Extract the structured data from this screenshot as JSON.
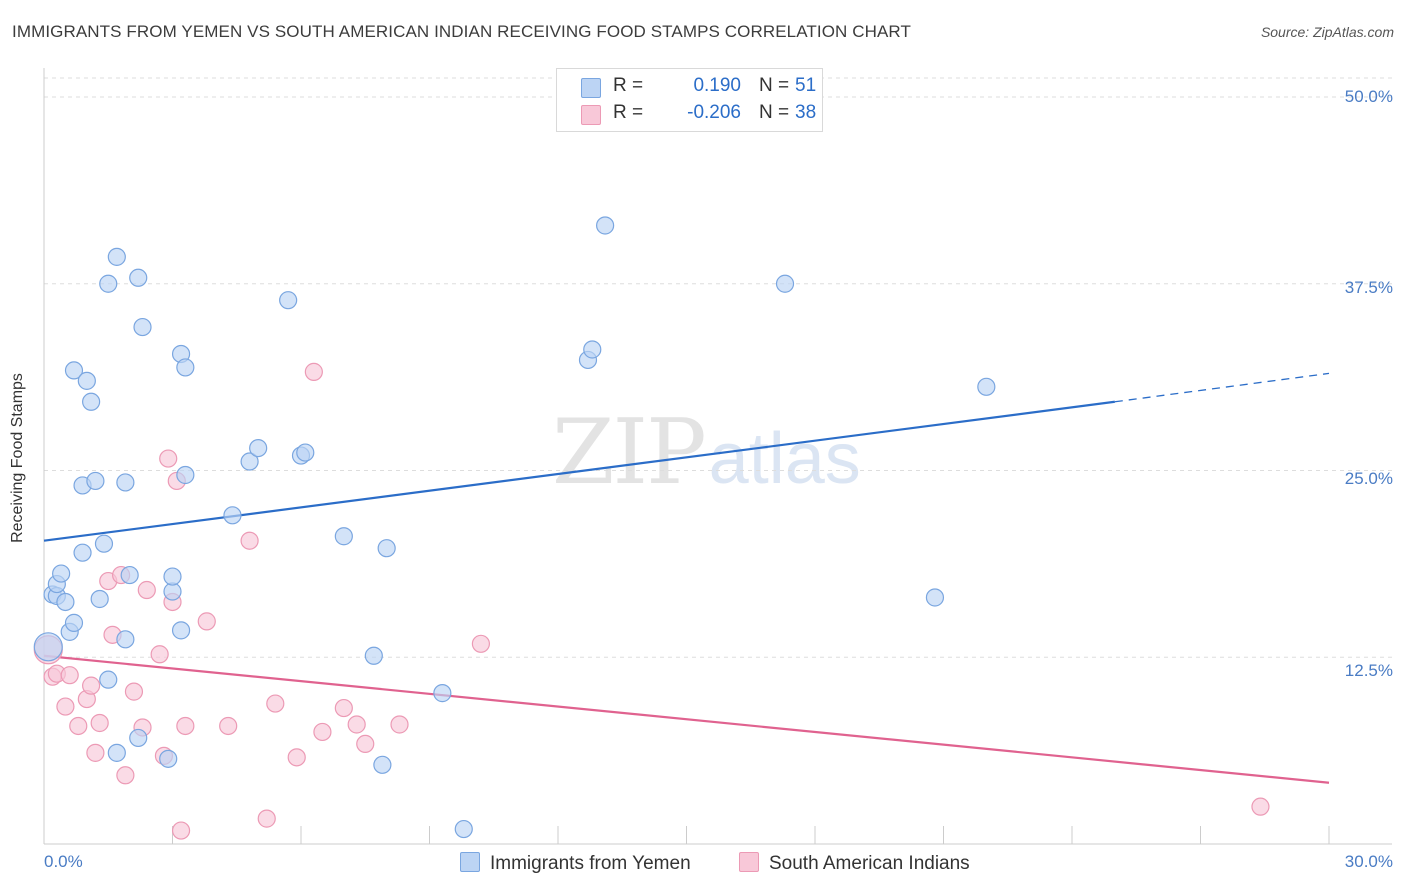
{
  "title": "IMMIGRANTS FROM YEMEN VS SOUTH AMERICAN INDIAN RECEIVING FOOD STAMPS CORRELATION CHART",
  "source": "Source: ZipAtlas.com",
  "watermark": {
    "part1": "ZIP",
    "part2": "atlas"
  },
  "legend": {
    "series1": {
      "r_label": "R =",
      "r_value": "0.190",
      "n_label": "N =",
      "n_value": "51"
    },
    "series2": {
      "r_label": "R =",
      "r_value": "-0.206",
      "n_label": "N =",
      "n_value": "38"
    }
  },
  "colors": {
    "blue_fill": "#bcd4f4",
    "blue_stroke": "#7aa6e0",
    "blue_line": "#2b6dc8",
    "pink_fill": "#f8c8d8",
    "pink_stroke": "#ec9ab5",
    "pink_line": "#e0628f",
    "value_text": "#2b6dc8",
    "grid": "#dddddd"
  },
  "chart_data": {
    "type": "scatter",
    "title": "IMMIGRANTS FROM YEMEN VS SOUTH AMERICAN INDIAN RECEIVING FOOD STAMPS CORRELATION CHART",
    "xlabel": "",
    "ylabel": "Receiving Food Stamps",
    "xlim": [
      0,
      30
    ],
    "ylim": [
      0,
      50
    ],
    "x_tick_labels": [
      "0.0%",
      "30.0%"
    ],
    "y_ticks": [
      12.5,
      25.0,
      37.5,
      50.0
    ],
    "y_tick_labels": [
      "12.5%",
      "25.0%",
      "37.5%",
      "50.0%"
    ],
    "grid": true,
    "series": [
      {
        "name": "Immigrants from Yemen",
        "color": "blue",
        "r": 0.19,
        "n": 51,
        "trend": {
          "x_start": 0,
          "y_start": 20.3,
          "x_solid_end": 25.0,
          "y_solid_end": 29.6,
          "x_end": 30.0,
          "y_end": 31.5
        },
        "points": [
          [
            0.1,
            13.2
          ],
          [
            0.2,
            16.7
          ],
          [
            0.3,
            16.6
          ],
          [
            0.3,
            17.4
          ],
          [
            0.4,
            18.1
          ],
          [
            0.5,
            16.2
          ],
          [
            0.6,
            14.2
          ],
          [
            0.7,
            14.8
          ],
          [
            0.7,
            31.7
          ],
          [
            0.9,
            19.5
          ],
          [
            0.9,
            24.0
          ],
          [
            1.0,
            31.0
          ],
          [
            1.1,
            29.6
          ],
          [
            1.2,
            24.3
          ],
          [
            1.3,
            16.4
          ],
          [
            1.4,
            20.1
          ],
          [
            1.5,
            11.0
          ],
          [
            1.5,
            37.5
          ],
          [
            1.7,
            6.1
          ],
          [
            1.7,
            39.3
          ],
          [
            1.9,
            13.7
          ],
          [
            1.9,
            24.2
          ],
          [
            2.0,
            18.0
          ],
          [
            2.2,
            37.9
          ],
          [
            2.2,
            7.1
          ],
          [
            2.3,
            34.6
          ],
          [
            2.9,
            5.7
          ],
          [
            3.0,
            16.9
          ],
          [
            3.0,
            17.9
          ],
          [
            3.2,
            14.3
          ],
          [
            3.2,
            32.8
          ],
          [
            3.3,
            31.9
          ],
          [
            3.3,
            24.7
          ],
          [
            4.4,
            22.0
          ],
          [
            4.8,
            25.6
          ],
          [
            5.0,
            26.5
          ],
          [
            5.7,
            36.4
          ],
          [
            6.0,
            26.0
          ],
          [
            6.1,
            26.2
          ],
          [
            7.0,
            20.6
          ],
          [
            7.7,
            12.6
          ],
          [
            7.9,
            5.3
          ],
          [
            8.0,
            19.8
          ],
          [
            9.3,
            10.1
          ],
          [
            9.8,
            1.0
          ],
          [
            12.7,
            32.4
          ],
          [
            12.8,
            33.1
          ],
          [
            13.1,
            41.4
          ],
          [
            17.3,
            37.5
          ],
          [
            20.8,
            16.5
          ],
          [
            22.0,
            30.6
          ]
        ]
      },
      {
        "name": "South American Indians",
        "color": "pink",
        "r": -0.206,
        "n": 38,
        "trend": {
          "x_start": 0,
          "y_start": 12.6,
          "x_end": 30.0,
          "y_end": 4.1
        },
        "points": [
          [
            0.1,
            13.0
          ],
          [
            0.2,
            11.2
          ],
          [
            0.3,
            11.4
          ],
          [
            0.5,
            9.2
          ],
          [
            0.6,
            11.3
          ],
          [
            0.8,
            7.9
          ],
          [
            1.0,
            9.7
          ],
          [
            1.1,
            10.6
          ],
          [
            1.2,
            6.1
          ],
          [
            1.3,
            8.1
          ],
          [
            1.5,
            17.6
          ],
          [
            1.6,
            14.0
          ],
          [
            1.8,
            18.0
          ],
          [
            1.9,
            4.6
          ],
          [
            2.1,
            10.2
          ],
          [
            2.3,
            7.8
          ],
          [
            2.4,
            17.0
          ],
          [
            2.7,
            12.7
          ],
          [
            2.8,
            5.9
          ],
          [
            2.9,
            25.8
          ],
          [
            3.0,
            16.2
          ],
          [
            3.1,
            24.3
          ],
          [
            3.2,
            0.9
          ],
          [
            3.3,
            7.9
          ],
          [
            3.8,
            14.9
          ],
          [
            4.3,
            7.9
          ],
          [
            4.8,
            20.3
          ],
          [
            5.2,
            1.7
          ],
          [
            5.4,
            9.4
          ],
          [
            5.9,
            5.8
          ],
          [
            6.3,
            31.6
          ],
          [
            6.5,
            7.5
          ],
          [
            7.0,
            9.1
          ],
          [
            7.3,
            8.0
          ],
          [
            7.5,
            6.7
          ],
          [
            8.3,
            8.0
          ],
          [
            10.2,
            13.4
          ],
          [
            28.4,
            2.5
          ]
        ]
      }
    ]
  }
}
